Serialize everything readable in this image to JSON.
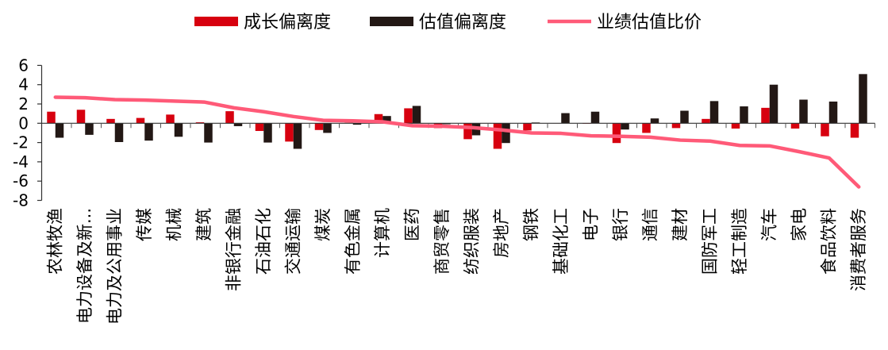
{
  "chart_data": {
    "type": "bar",
    "title": "",
    "xlabel": "",
    "ylabel": "",
    "ylim": [
      -8,
      6
    ],
    "yticks": [
      6,
      4,
      2,
      0,
      -2,
      -4,
      -6,
      -8
    ],
    "grid": false,
    "legend_position": "top",
    "categories": [
      "农林牧渔",
      "电力设备及新...",
      "电力及公用事业",
      "传媒",
      "机械",
      "建筑",
      "非银行金融",
      "石油石化",
      "交通运输",
      "煤炭",
      "有色金属",
      "计算机",
      "医药",
      "商贸零售",
      "纺织服装",
      "房地产",
      "钢铁",
      "基础化工",
      "电子",
      "银行",
      "通信",
      "建材",
      "国防军工",
      "轻工制造",
      "汽车",
      "家电",
      "食品饮料",
      "消费者服务"
    ],
    "series": [
      {
        "name": "成长偏离度",
        "type": "bar",
        "color": "#d7000f",
        "values": [
          1.2,
          1.4,
          0.45,
          0.55,
          0.9,
          0.1,
          1.25,
          -0.8,
          -1.9,
          -0.7,
          0.05,
          0.95,
          1.55,
          -0.5,
          -1.65,
          -2.65,
          -0.75,
          0.02,
          -0.05,
          -2.05,
          -1.0,
          -0.5,
          0.45,
          -0.55,
          1.6,
          -0.55,
          -1.35,
          -1.5
        ]
      },
      {
        "name": "估值偏离度",
        "type": "bar",
        "color": "#231815",
        "values": [
          -1.5,
          -1.2,
          -1.95,
          -1.8,
          -1.4,
          -2.0,
          -0.3,
          -2.0,
          -2.65,
          -1.0,
          -0.15,
          0.75,
          1.8,
          -0.1,
          -1.25,
          -2.05,
          0.08,
          1.05,
          1.2,
          -0.65,
          0.5,
          1.3,
          2.3,
          1.75,
          4.0,
          2.45,
          2.25,
          5.1
        ]
      },
      {
        "name": "业绩估值比价",
        "type": "line",
        "color": "#ff5a78",
        "values": [
          2.7,
          2.65,
          2.45,
          2.4,
          2.3,
          2.2,
          1.6,
          1.2,
          0.7,
          0.3,
          0.25,
          0.15,
          -0.25,
          -0.3,
          -0.45,
          -0.7,
          -1.0,
          -1.05,
          -1.3,
          -1.35,
          -1.45,
          -1.75,
          -1.85,
          -2.3,
          -2.35,
          -2.95,
          -3.6,
          -6.6
        ]
      }
    ]
  }
}
